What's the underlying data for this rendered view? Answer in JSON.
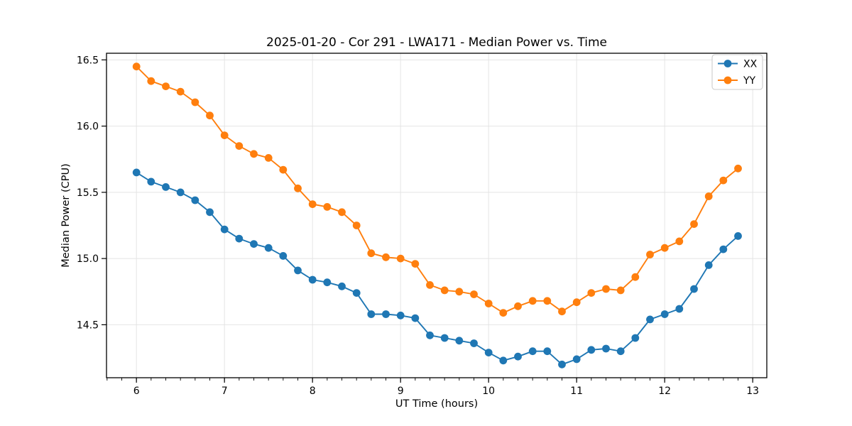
{
  "figure": {
    "title": "2025-01-20 - Cor 291 - LWA171 - Median Power vs. Time"
  },
  "chart_data": {
    "type": "line",
    "title": "2025-01-20 - Cor 291 - LWA171 - Median Power vs. Time",
    "xlabel": "UT Time (hours)",
    "ylabel": "Median Power (CPU)",
    "xlim": [
      5.66,
      13.16
    ],
    "ylim": [
      14.1,
      16.55
    ],
    "xticks": [
      6,
      7,
      8,
      9,
      10,
      11,
      12,
      13
    ],
    "yticks": [
      14.5,
      15.0,
      15.5,
      16.0,
      16.5
    ],
    "x_minor_step": 0.166667,
    "grid": true,
    "legend_position": "upper right",
    "marker": "circle",
    "x": [
      6.0,
      6.1667,
      6.3333,
      6.5,
      6.6667,
      6.8333,
      7.0,
      7.1667,
      7.3333,
      7.5,
      7.6667,
      7.8333,
      8.0,
      8.1667,
      8.3333,
      8.5,
      8.6667,
      8.8333,
      9.0,
      9.1667,
      9.3333,
      9.5,
      9.6667,
      9.8333,
      10.0,
      10.1667,
      10.3333,
      10.5,
      10.6667,
      10.8333,
      11.0,
      11.1667,
      11.3333,
      11.5,
      11.6667,
      11.8333,
      12.0,
      12.1667,
      12.3333,
      12.5,
      12.6667,
      12.8333
    ],
    "series": [
      {
        "name": "XX",
        "color": "#1f77b4",
        "values": [
          15.65,
          15.58,
          15.54,
          15.5,
          15.44,
          15.35,
          15.22,
          15.15,
          15.11,
          15.08,
          15.02,
          14.91,
          14.84,
          14.82,
          14.79,
          14.74,
          14.58,
          14.58,
          14.57,
          14.55,
          14.42,
          14.4,
          14.38,
          14.36,
          14.29,
          14.23,
          14.26,
          14.3,
          14.3,
          14.2,
          14.24,
          14.31,
          14.32,
          14.3,
          14.4,
          14.54,
          14.58,
          14.62,
          14.77,
          14.95,
          15.07,
          15.17
        ]
      },
      {
        "name": "YY",
        "color": "#ff7f0e",
        "values": [
          16.45,
          16.34,
          16.3,
          16.26,
          16.18,
          16.08,
          15.93,
          15.85,
          15.79,
          15.76,
          15.67,
          15.53,
          15.41,
          15.39,
          15.35,
          15.25,
          15.04,
          15.01,
          15.0,
          14.96,
          14.8,
          14.76,
          14.75,
          14.73,
          14.66,
          14.59,
          14.64,
          14.68,
          14.68,
          14.6,
          14.67,
          14.74,
          14.77,
          14.76,
          14.86,
          15.03,
          15.08,
          15.13,
          15.26,
          15.47,
          15.59,
          15.68
        ]
      }
    ],
    "style": {
      "grid_color": "#e4e4e4",
      "spine_color": "#000000",
      "legend_border": "#cccccc",
      "background": "#ffffff"
    }
  }
}
